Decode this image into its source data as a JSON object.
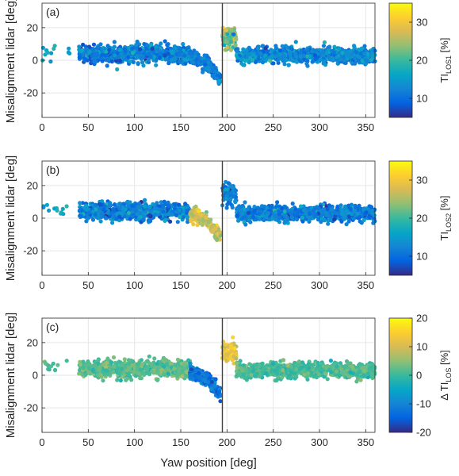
{
  "figure": {
    "xlabel": "Yaw position [deg]",
    "ylabel": "Misalignment lidar [deg]",
    "xticks": [
      0,
      50,
      100,
      150,
      200,
      250,
      300,
      350
    ],
    "yticks": [
      -20,
      0,
      20
    ],
    "xlim": [
      0,
      360
    ],
    "ylim": [
      -35,
      35
    ],
    "vertical_line_x": 195,
    "grid": true
  },
  "chart_data": [
    {
      "type": "scatter",
      "panel_label": "(a)",
      "colorbar": {
        "label_main": "TI",
        "label_sub": "LOS1",
        "label_unit": " [%]",
        "prefix": "",
        "ticks": [
          10,
          20,
          30
        ],
        "range": [
          5,
          35
        ]
      },
      "description_of_color": "turbulence intensity LOS1",
      "regions": [
        {
          "x_range": [
            0,
            30
          ],
          "y_center": 6,
          "y_spread": 4,
          "c_center": 16,
          "c_spread": 3
        },
        {
          "x_range": [
            40,
            160
          ],
          "y_center": 4,
          "y_spread": 4.5,
          "c_center": 12,
          "c_spread": 4
        },
        {
          "x_range": [
            160,
            193
          ],
          "y_center_trend": [
            2,
            -12
          ],
          "y_spread": 4,
          "c_center": 12,
          "c_spread": 3
        },
        {
          "x_range": [
            195,
            210
          ],
          "y_center": 14,
          "y_spread": 6,
          "c_center": 22,
          "c_spread": 6
        },
        {
          "x_range": [
            210,
            360
          ],
          "y_center": 3,
          "y_spread": 4,
          "c_center": 13,
          "c_spread": 4
        }
      ]
    },
    {
      "type": "scatter",
      "panel_label": "(b)",
      "colorbar": {
        "label_main": "TI",
        "label_sub": "LOS2",
        "label_unit": " [%]",
        "prefix": "",
        "ticks": [
          10,
          20,
          30
        ],
        "range": [
          5,
          35
        ]
      },
      "description_of_color": "turbulence intensity LOS2",
      "regions": [
        {
          "x_range": [
            0,
            30
          ],
          "y_center": 6,
          "y_spread": 4,
          "c_center": 16,
          "c_spread": 3
        },
        {
          "x_range": [
            40,
            160
          ],
          "y_center": 4,
          "y_spread": 4.5,
          "c_center": 12,
          "c_spread": 4
        },
        {
          "x_range": [
            160,
            193
          ],
          "y_center_trend": [
            2,
            -12
          ],
          "y_spread": 4,
          "c_center": 27,
          "c_spread": 4
        },
        {
          "x_range": [
            195,
            210
          ],
          "y_center": 14,
          "y_spread": 6,
          "c_center": 12,
          "c_spread": 3
        },
        {
          "x_range": [
            210,
            360
          ],
          "y_center": 3,
          "y_spread": 4,
          "c_center": 12,
          "c_spread": 4
        }
      ]
    },
    {
      "type": "scatter",
      "panel_label": "(c)",
      "colorbar": {
        "label_main": "TI",
        "label_sub": "LOS",
        "label_unit": " [%]",
        "prefix": "Δ ",
        "ticks": [
          -20,
          -10,
          0,
          10,
          20
        ],
        "range": [
          -20,
          20
        ]
      },
      "description_of_color": "difference of turbulence intensity",
      "regions": [
        {
          "x_range": [
            0,
            30
          ],
          "y_center": 6,
          "y_spread": 4,
          "c_center": 1,
          "c_spread": 2
        },
        {
          "x_range": [
            40,
            160
          ],
          "y_center": 4,
          "y_spread": 4.5,
          "c_center": 2,
          "c_spread": 3
        },
        {
          "x_range": [
            160,
            193
          ],
          "y_center_trend": [
            2,
            -12
          ],
          "y_spread": 4,
          "c_center": -12,
          "c_spread": 4
        },
        {
          "x_range": [
            195,
            210
          ],
          "y_center": 14,
          "y_spread": 6,
          "c_center": 12,
          "c_spread": 5
        },
        {
          "x_range": [
            210,
            360
          ],
          "y_center": 3,
          "y_spread": 4,
          "c_center": 1,
          "c_spread": 3
        }
      ]
    }
  ],
  "colors": {
    "axis": "#262626",
    "grid": "#e6e6e6",
    "vline": "#404040",
    "parula": [
      "#352a87",
      "#0363e1",
      "#1485d4",
      "#06a7c6",
      "#38b99e",
      "#92bf73",
      "#d9ba56",
      "#fcce2e",
      "#f9fb0e"
    ]
  }
}
